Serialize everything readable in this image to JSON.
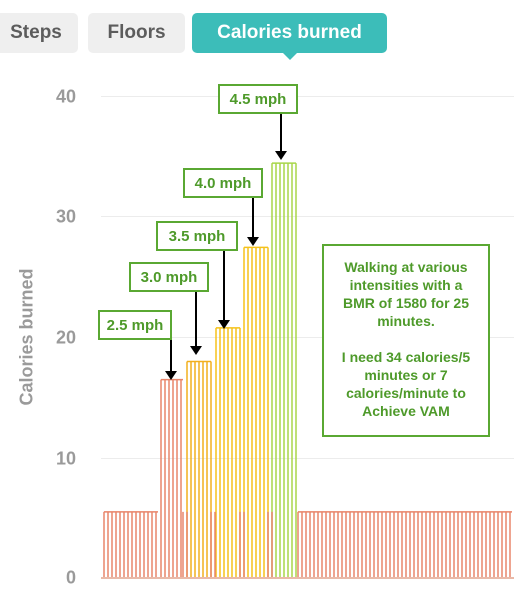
{
  "tabs": [
    {
      "label": "Steps",
      "active": false
    },
    {
      "label": "Floors",
      "active": false
    },
    {
      "label": "Calories burned",
      "active": true
    }
  ],
  "colors": {
    "tab_active": "#3cbdb9",
    "annotation_green": "#5aa832",
    "baseline_bar": "#e8856a"
  },
  "chart_data": {
    "type": "bar",
    "ylabel": "Calories burned",
    "xlabel": "",
    "ylim": [
      0,
      40
    ],
    "yticks": [
      0,
      10,
      20,
      30,
      40
    ],
    "grid": true,
    "series_values": [
      {
        "value": 5.5,
        "color": "#e8856a",
        "label": ""
      },
      {
        "value": 16.5,
        "color": "#e8856a",
        "label": "2.5 mph"
      },
      {
        "value": 18.0,
        "color": "#f2b01e",
        "label": "3.0 mph"
      },
      {
        "value": 20.8,
        "color": "#f5c21b",
        "label": "3.5 mph"
      },
      {
        "value": 27.5,
        "color": "#f5c21b",
        "label": "4.0 mph"
      },
      {
        "value": 34.5,
        "color": "#a8d64a",
        "label": "4.5 mph"
      },
      {
        "value": 5.5,
        "color": "#e8856a",
        "label": ""
      }
    ]
  },
  "annotations": {
    "speeds": [
      "2.5 mph",
      "3.0 mph",
      "3.5 mph",
      "4.0 mph",
      "4.5 mph"
    ],
    "note_line1": "Walking at various intensities with a BMR of 1580 for 25 minutes.",
    "note_line2": "I need 34 calories/5 minutes or 7 calories/minute to Achieve VAM"
  }
}
